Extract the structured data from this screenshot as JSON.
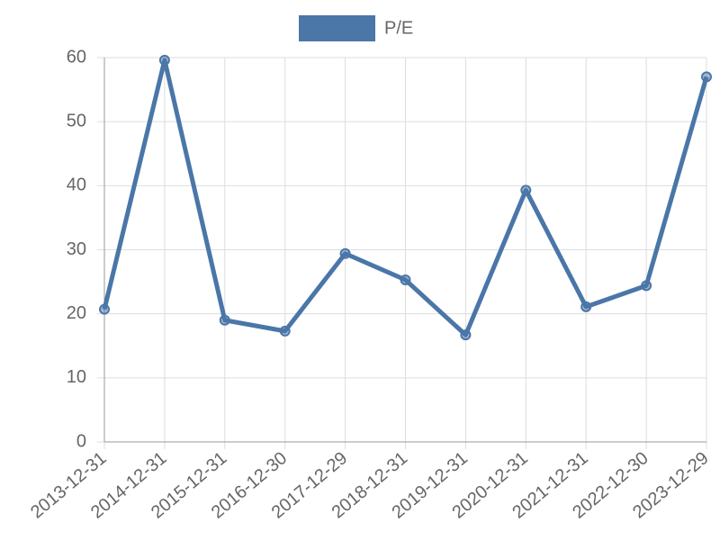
{
  "chart_data": {
    "type": "line",
    "categories": [
      "2013-12-31",
      "2014-12-31",
      "2015-12-31",
      "2016-12-30",
      "2017-12-29",
      "2018-12-31",
      "2019-12-31",
      "2020-12-31",
      "2021-12-31",
      "2022-12-30",
      "2023-12-29"
    ],
    "series": [
      {
        "name": "P/E",
        "color": "#4a76a8",
        "values": [
          20.7,
          59.6,
          19.0,
          17.3,
          29.4,
          25.3,
          16.7,
          39.3,
          21.1,
          24.4,
          57.0
        ]
      }
    ],
    "ylim": [
      0,
      60
    ],
    "yticks": [
      0,
      10,
      20,
      30,
      40,
      50,
      60
    ],
    "grid": true,
    "legend": "top"
  }
}
